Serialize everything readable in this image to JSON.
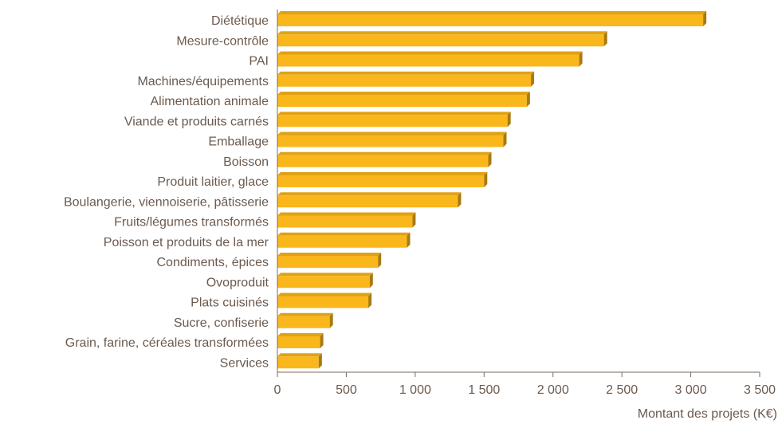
{
  "chart_data": {
    "type": "bar",
    "orientation": "horizontal",
    "categories": [
      "Diététique",
      "Mesure-contrôle",
      "PAI",
      "Machines/équipements",
      "Alimentation animale",
      "Viande et produits carnés",
      "Emballage",
      "Boisson",
      "Produit laitier, glace",
      "Boulangerie, viennoiserie, pâtisserie",
      "Fruits/légumes transformés",
      "Poisson et produits de la mer",
      "Condiments, épices",
      "Ovoproduit",
      "Plats cuisinés",
      "Sucre, confiserie",
      "Grain, farine, céréales transformées",
      "Services"
    ],
    "values": [
      3090,
      2370,
      2190,
      1840,
      1810,
      1670,
      1640,
      1530,
      1500,
      1310,
      980,
      940,
      730,
      670,
      660,
      380,
      310,
      300
    ],
    "xlabel": "Montant des projets (K€)",
    "ylabel": "",
    "title": "",
    "xlim": [
      0,
      3500
    ],
    "xticks": [
      0,
      500,
      1000,
      1500,
      2000,
      2500,
      3000,
      3500
    ],
    "xtick_labels": [
      "0",
      "500",
      "1 000",
      "1 500",
      "2 000",
      "2 500",
      "3 000",
      "3 500"
    ],
    "grid": false,
    "legend": "none",
    "colors": {
      "bar_front": "#f9b71c",
      "bar_top": "#e0a215",
      "bar_side": "#a87a10",
      "axis": "#7a6a5e",
      "text": "#6b5a4e"
    }
  }
}
